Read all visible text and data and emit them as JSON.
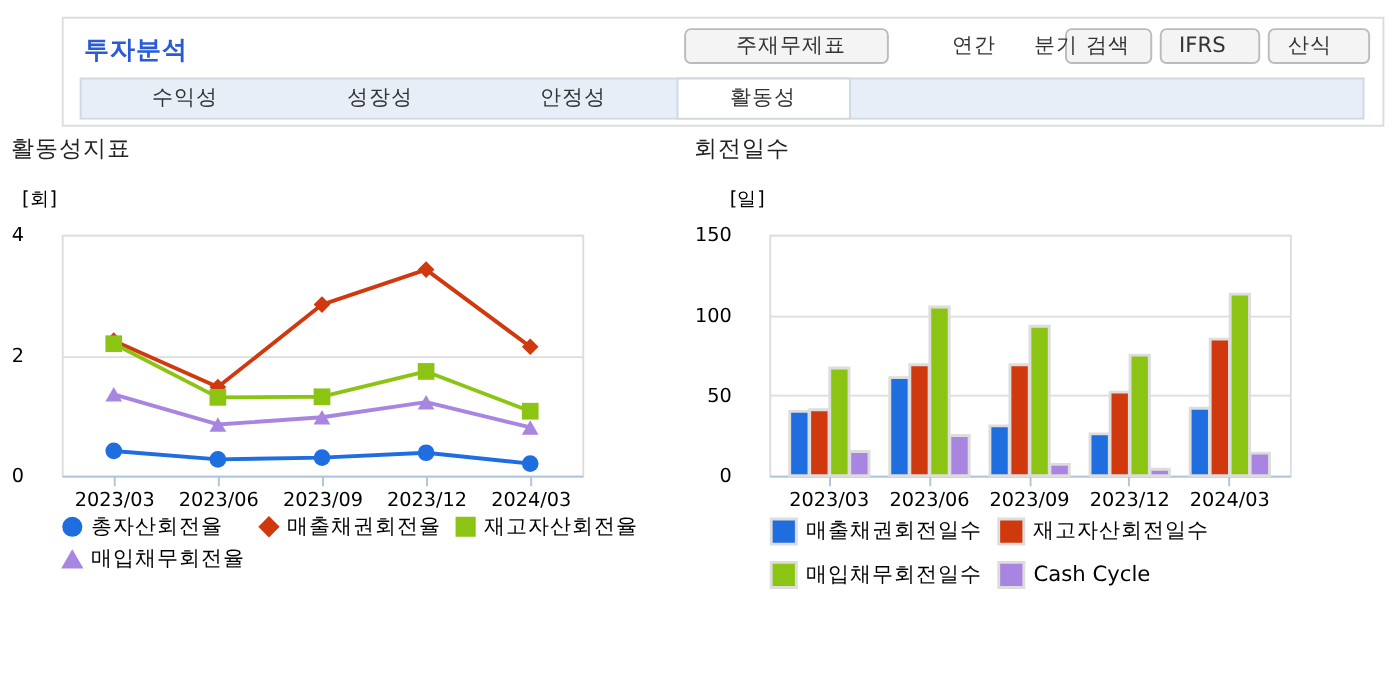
{
  "chart_data": [
    {
      "type": "other",
      "title": "투자분석",
      "annotations": [
        "주재무제표",
        "연간",
        "분기",
        "검색",
        "IFRS",
        "산식",
        "수익성",
        "성장성",
        "안정성",
        "활동성"
      ]
    },
    {
      "type": "line",
      "title": "활동성지표",
      "ylabel": "[회]",
      "categories": [
        "2023/03",
        "2023/06",
        "2023/09",
        "2023/12",
        "2024/03"
      ],
      "ylim": [
        0,
        4
      ],
      "yticks": [
        0,
        2,
        4
      ],
      "grid": "y",
      "legend": "bottom",
      "line_style": "solid",
      "series": [
        {
          "name": "총자산회전율",
          "color": "#1f6ee0",
          "marker": "circle",
          "values": [
            0.41,
            0.27,
            0.3,
            0.38,
            0.2
          ]
        },
        {
          "name": "매출채권회전율",
          "color": "#d0390d",
          "marker": "diamond",
          "values": [
            2.24,
            1.47,
            2.84,
            3.42,
            2.14
          ]
        },
        {
          "name": "재고자산회전율",
          "color": "#8cc414",
          "marker": "square",
          "values": [
            2.19,
            1.3,
            1.31,
            1.73,
            1.07
          ]
        },
        {
          "name": "매입채무회전율",
          "color": "#a985e2",
          "marker": "triangle",
          "values": [
            1.35,
            0.85,
            0.97,
            1.22,
            0.8
          ]
        }
      ]
    },
    {
      "type": "bar",
      "title": "회전일수",
      "ylabel": "[일]",
      "categories": [
        "2023/03",
        "2023/06",
        "2023/09",
        "2023/12",
        "2024/03"
      ],
      "ylim": [
        0,
        150
      ],
      "yticks": [
        0,
        50,
        100,
        150
      ],
      "grid": "y",
      "legend": "bottom",
      "series": [
        {
          "name": "매출채권회전일수",
          "color": "#1f6ee0",
          "values": [
            40,
            61,
            31,
            26,
            42
          ]
        },
        {
          "name": "재고자산회전일수",
          "color": "#d0390d",
          "values": [
            41,
            69,
            69,
            52,
            85
          ]
        },
        {
          "name": "매입채무회전일수",
          "color": "#8cc414",
          "values": [
            67,
            105,
            93,
            75,
            113
          ]
        },
        {
          "name": "Cash Cycle",
          "color": "#a985e2",
          "values": [
            15,
            25,
            7,
            4,
            14
          ]
        }
      ]
    }
  ]
}
